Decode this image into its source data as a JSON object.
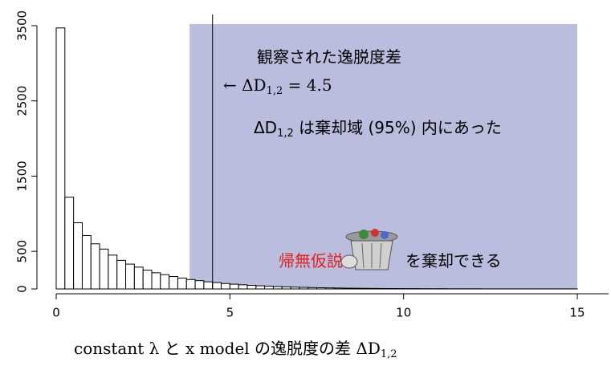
{
  "chart_data": {
    "type": "histogram",
    "bins": [
      0,
      0.25,
      0.5,
      0.75,
      1,
      1.25,
      1.5,
      1.75,
      2,
      2.25,
      2.5,
      2.75,
      3,
      3.25,
      3.5,
      3.75,
      4,
      4.25,
      4.5,
      4.75,
      5,
      5.25,
      5.5,
      5.75,
      6,
      6.25,
      6.5,
      6.75,
      7,
      7.25,
      7.5,
      7.75,
      8,
      8.25,
      8.5,
      8.75,
      9,
      9.25,
      9.5,
      9.75,
      10,
      10.25,
      10.5,
      10.75,
      11,
      11.25,
      11.5,
      11.75,
      12,
      12.25,
      12.5,
      12.75,
      13,
      13.25,
      13.5,
      13.75,
      14,
      14.25,
      14.5,
      14.75,
      15,
      15.25,
      15.5,
      15.75
    ],
    "values": [
      3470,
      1220,
      880,
      710,
      600,
      530,
      450,
      380,
      330,
      290,
      250,
      215,
      190,
      165,
      145,
      125,
      110,
      95,
      85,
      72,
      63,
      55,
      48,
      42,
      37,
      32,
      28,
      24,
      21,
      18,
      16,
      14,
      12,
      10,
      9,
      8,
      7,
      6,
      5,
      5,
      4,
      4,
      3,
      3,
      3,
      2,
      2,
      2,
      2,
      1,
      1,
      1,
      1,
      1,
      1,
      1,
      1,
      1,
      1,
      1,
      0,
      0,
      0
    ],
    "color": "#ffffff",
    "shade_region": {
      "xlim": [
        3.84,
        15
      ],
      "color": "#bbbddf"
    },
    "vline": 4.5,
    "xlim": [
      0,
      15.9
    ],
    "ylim": [
      0,
      3500
    ],
    "xticks": [
      0,
      5,
      10,
      15
    ],
    "yticks": [
      0,
      500,
      1500,
      2500,
      3500
    ],
    "x_label": {
      "parts": [
        {
          "text": "constant λ と x model の逸脱度の差 ΔD"
        },
        {
          "sub": "1,2"
        }
      ]
    },
    "annotations": [
      {
        "parts": [
          {
            "text": "観察された逸脱度差"
          }
        ]
      },
      {
        "parts": [
          {
            "text": "← ΔD"
          },
          {
            "sub": "1,2"
          },
          {
            "text": " = 4.5"
          }
        ]
      },
      {
        "parts": [
          {
            "text": "ΔD"
          },
          {
            "sub": "1,2"
          },
          {
            "text": " は棄却域 (95%) 内にあった"
          }
        ]
      },
      {
        "parts": [
          {
            "text": "帰無仮説",
            "color": "#e0201b"
          },
          {
            "text": "を棄却できる"
          }
        ]
      }
    ]
  }
}
